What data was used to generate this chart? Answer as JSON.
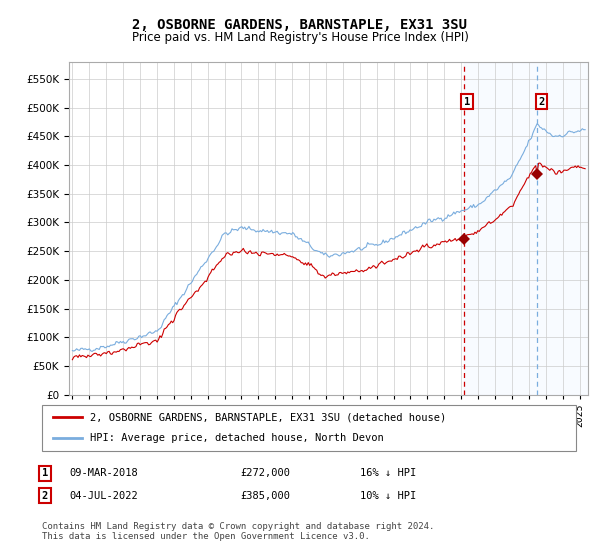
{
  "title": "2, OSBORNE GARDENS, BARNSTAPLE, EX31 3SU",
  "subtitle": "Price paid vs. HM Land Registry's House Price Index (HPI)",
  "title_fontsize": 10,
  "subtitle_fontsize": 8.5,
  "legend_line1": "2, OSBORNE GARDENS, BARNSTAPLE, EX31 3SU (detached house)",
  "legend_line2": "HPI: Average price, detached house, North Devon",
  "footer": "Contains HM Land Registry data © Crown copyright and database right 2024.\nThis data is licensed under the Open Government Licence v3.0.",
  "sale1_date": "09-MAR-2018",
  "sale1_price": 272000,
  "sale1_label": "£272,000",
  "sale1_pct": "16% ↓ HPI",
  "sale2_date": "04-JUL-2022",
  "sale2_price": 385000,
  "sale2_label": "£385,000",
  "sale2_pct": "10% ↓ HPI",
  "hpi_color": "#7aadde",
  "price_color": "#cc0000",
  "marker_color": "#990000",
  "vline1_color": "#cc0000",
  "vline2_color": "#7aadde",
  "shade_color": "#ddeeff",
  "background_color": "#ffffff",
  "grid_color": "#cccccc",
  "ylim": [
    0,
    580000
  ],
  "yticks": [
    0,
    50000,
    100000,
    150000,
    200000,
    250000,
    300000,
    350000,
    400000,
    450000,
    500000,
    550000
  ],
  "xstart": 1994.8,
  "xend": 2025.5,
  "sale1_x": 2018.18,
  "sale2_x": 2022.5
}
